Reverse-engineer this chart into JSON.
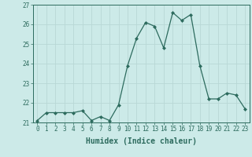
{
  "x": [
    0,
    1,
    2,
    3,
    4,
    5,
    6,
    7,
    8,
    9,
    10,
    11,
    12,
    13,
    14,
    15,
    16,
    17,
    18,
    19,
    20,
    21,
    22,
    23
  ],
  "y": [
    21.1,
    21.5,
    21.5,
    21.5,
    21.5,
    21.6,
    21.1,
    21.3,
    21.1,
    21.9,
    23.9,
    25.3,
    26.1,
    25.9,
    24.8,
    26.6,
    26.2,
    26.5,
    23.9,
    22.2,
    22.2,
    22.5,
    22.4,
    21.7
  ],
  "line_color": "#2d6b5e",
  "marker": "D",
  "marker_size": 2.0,
  "bg_color": "#cceae8",
  "grid_color": "#b8d8d6",
  "xlabel": "Humidex (Indice chaleur)",
  "ylim": [
    21,
    27
  ],
  "xlim": [
    -0.5,
    23.5
  ],
  "yticks": [
    21,
    22,
    23,
    24,
    25,
    26,
    27
  ],
  "xticks": [
    0,
    1,
    2,
    3,
    4,
    5,
    6,
    7,
    8,
    9,
    10,
    11,
    12,
    13,
    14,
    15,
    16,
    17,
    18,
    19,
    20,
    21,
    22,
    23
  ],
  "xlabel_fontsize": 7,
  "tick_fontsize": 5.5,
  "tick_color": "#2d6b5e",
  "axis_color": "#2d6b5e",
  "linewidth": 0.9
}
